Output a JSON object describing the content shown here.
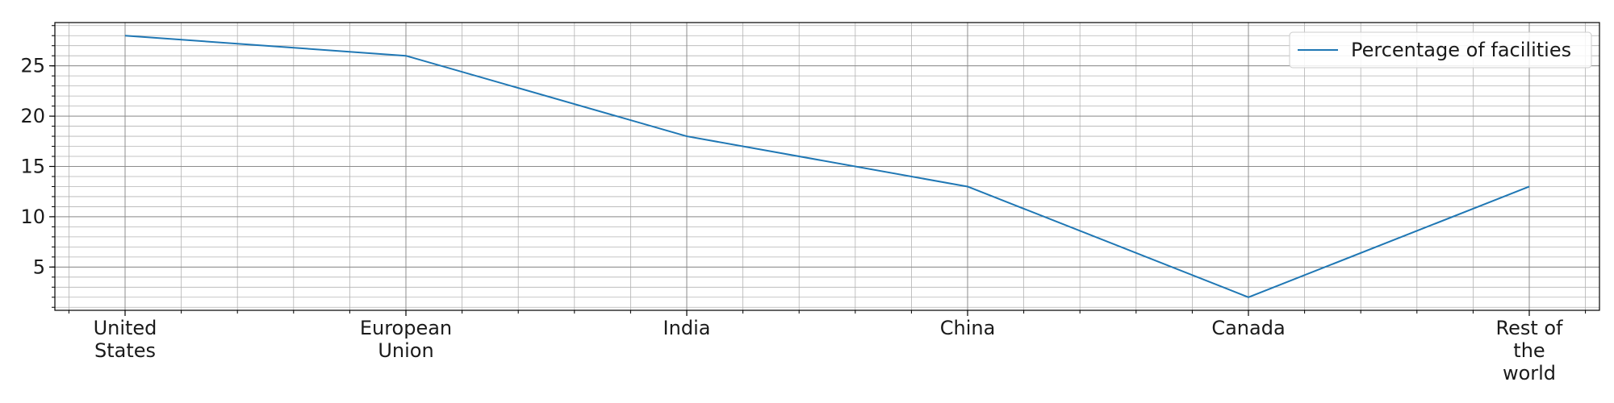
{
  "chart_data": {
    "type": "line",
    "categories": [
      [
        "United",
        "States"
      ],
      [
        "European",
        "Union"
      ],
      [
        "India"
      ],
      [
        "China"
      ],
      [
        "Canada"
      ],
      [
        "Rest of",
        "the",
        "world"
      ]
    ],
    "series": [
      {
        "name": "Percentage of facilities",
        "values": [
          28,
          26,
          18,
          13,
          2,
          13
        ],
        "color": "#1f77b4"
      }
    ],
    "y_ticks": [
      5,
      10,
      15,
      20,
      25
    ],
    "ylim": [
      0.7,
      29.3
    ],
    "grid": {
      "major": true,
      "minor": true
    },
    "legend_position": "top-right"
  }
}
